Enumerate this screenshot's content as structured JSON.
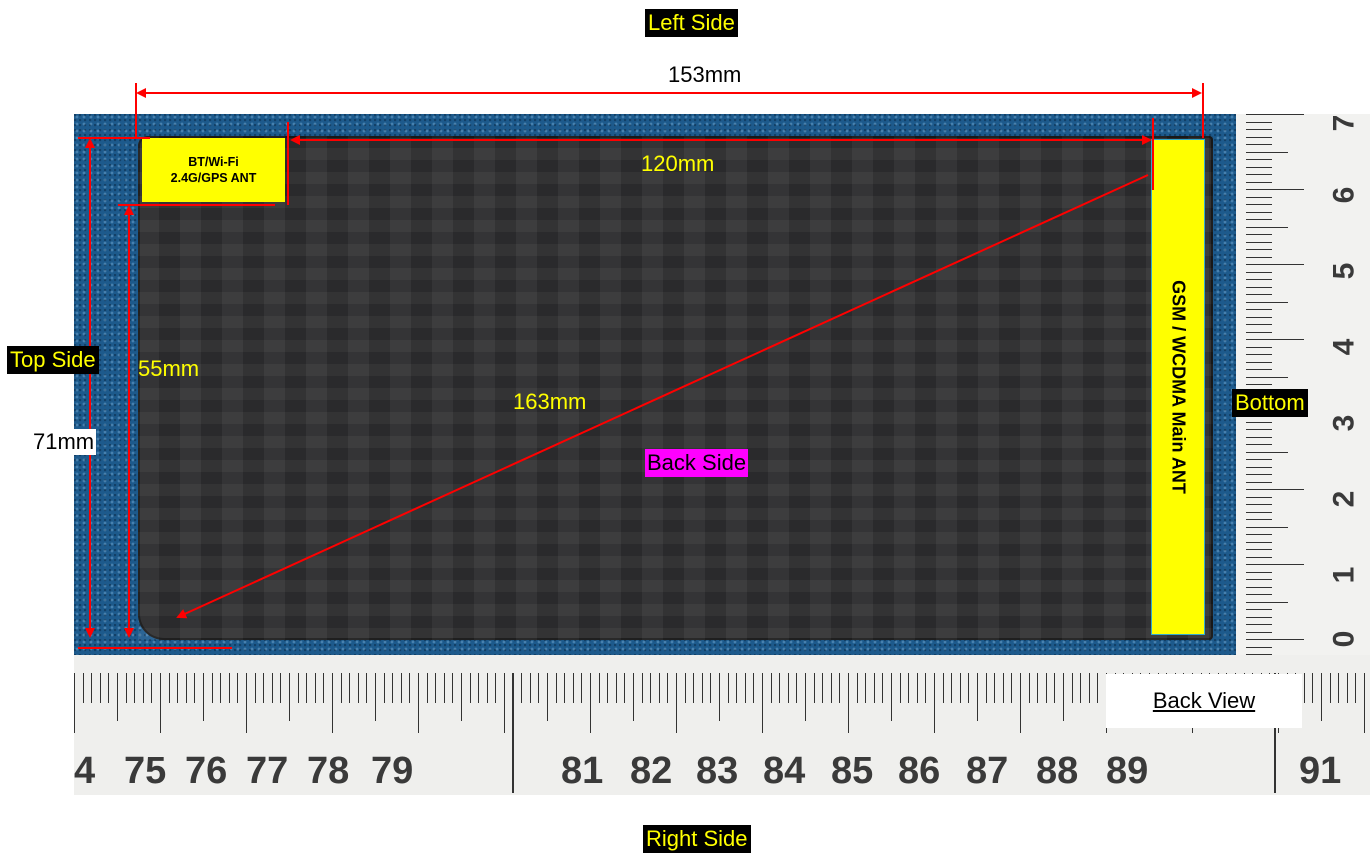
{
  "sides": {
    "left": "Left Side",
    "right": "Right Side",
    "top": "Top Side",
    "bottom": "Bottom",
    "back": "Back Side"
  },
  "dimensions": {
    "total_length": "153mm",
    "inner_length": "120mm",
    "diagonal": "163mm",
    "total_width": "71mm",
    "inner_width": "55mm"
  },
  "antennas": {
    "bt_line1": "BT/Wi-Fi",
    "bt_line2": "2.4G/GPS ANT",
    "main": "GSM / WCDMA Main ANT"
  },
  "view_label": "Back View",
  "ruler_bottom_numbers": [
    "4",
    "75",
    "76",
    "77",
    "78",
    "79",
    "81",
    "82",
    "83",
    "84",
    "85",
    "86",
    "87",
    "88",
    "89",
    "91"
  ],
  "ruler_right_numbers": [
    "7",
    "6",
    "5",
    "4",
    "3",
    "2",
    "1",
    "0"
  ],
  "colors": {
    "highlight_yellow": "#ffff00",
    "dimension_red": "#ff0000",
    "back_side_magenta": "#ff00ff",
    "background_blue": "#1d5a8c"
  }
}
